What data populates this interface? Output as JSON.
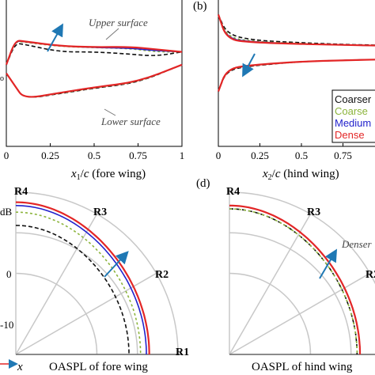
{
  "colors": {
    "coarser": "#111111",
    "coarse": "#8cb43c",
    "medium": "#2222cc",
    "dense": "#e32626",
    "arrow": "#1f78b4",
    "grid": "#c8c8c8"
  },
  "chart_data": [
    {
      "panel": "a",
      "type": "line",
      "xlabel": "x1/c (fore wing)",
      "xticks": [
        "0",
        "0.25",
        "0.5",
        "0.75",
        "1"
      ],
      "xlim": [
        0,
        1
      ],
      "annotations": [
        "Upper surface",
        "Lower surface"
      ],
      "series": [
        {
          "name": "Coarser",
          "upper": [
            [
              0,
              0.3
            ],
            [
              0.05,
              0.8
            ],
            [
              0.1,
              0.78
            ],
            [
              0.3,
              0.6
            ],
            [
              0.5,
              0.6
            ],
            [
              0.7,
              0.55
            ],
            [
              0.85,
              0.5
            ],
            [
              1,
              0.6
            ]
          ],
          "lower": [
            [
              0,
              0.1
            ],
            [
              0.05,
              -0.2
            ],
            [
              0.1,
              -0.5
            ],
            [
              0.3,
              -0.38
            ],
            [
              0.5,
              -0.25
            ],
            [
              0.75,
              -0.12
            ],
            [
              1,
              0.3
            ]
          ]
        },
        {
          "name": "Coarse",
          "upper": [
            [
              0,
              0.3
            ],
            [
              0.05,
              0.85
            ],
            [
              0.1,
              0.83
            ],
            [
              0.3,
              0.73
            ],
            [
              0.5,
              0.7
            ],
            [
              0.7,
              0.68
            ],
            [
              0.85,
              0.6
            ],
            [
              1,
              0.6
            ]
          ],
          "lower": [
            [
              0,
              0.1
            ],
            [
              0.05,
              -0.2
            ],
            [
              0.1,
              -0.5
            ],
            [
              0.3,
              -0.37
            ],
            [
              0.5,
              -0.24
            ],
            [
              0.75,
              -0.11
            ],
            [
              1,
              0.3
            ]
          ]
        },
        {
          "name": "Medium",
          "upper": [
            [
              0,
              0.3
            ],
            [
              0.05,
              0.86
            ],
            [
              0.1,
              0.84
            ],
            [
              0.3,
              0.74
            ],
            [
              0.5,
              0.7
            ],
            [
              0.7,
              0.69
            ],
            [
              0.85,
              0.63
            ],
            [
              1,
              0.6
            ]
          ],
          "lower": [
            [
              0,
              0.1
            ],
            [
              0.05,
              -0.2
            ],
            [
              0.1,
              -0.5
            ],
            [
              0.3,
              -0.36
            ],
            [
              0.5,
              -0.23
            ],
            [
              0.75,
              -0.1
            ],
            [
              1,
              0.3
            ]
          ]
        },
        {
          "name": "Dense",
          "upper": [
            [
              0,
              0.3
            ],
            [
              0.05,
              0.87
            ],
            [
              0.1,
              0.85
            ],
            [
              0.3,
              0.74
            ],
            [
              0.5,
              0.71
            ],
            [
              0.7,
              0.72
            ],
            [
              0.85,
              0.66
            ],
            [
              1,
              0.6
            ]
          ],
          "lower": [
            [
              0,
              0.1
            ],
            [
              0.05,
              -0.2
            ],
            [
              0.1,
              -0.5
            ],
            [
              0.3,
              -0.36
            ],
            [
              0.5,
              -0.23
            ],
            [
              0.75,
              -0.1
            ],
            [
              1,
              0.3
            ]
          ]
        }
      ]
    },
    {
      "panel": "b",
      "type": "line",
      "label": "(b)",
      "xlabel": "x2/c (hind wing)",
      "xticks": [
        "0",
        "0.25",
        "0.5",
        "0.75"
      ],
      "xlim": [
        0,
        1
      ],
      "legend": [
        "Coarser",
        "Coarse",
        "Medium",
        "Dense"
      ],
      "legend_position": "bottom-right",
      "series": [
        {
          "name": "Coarser",
          "upper": [
            [
              0,
              0.9
            ],
            [
              0.05,
              0.45
            ],
            [
              0.2,
              0.3
            ],
            [
              0.5,
              0.24
            ],
            [
              0.75,
              0.2
            ],
            [
              1,
              0.18
            ]
          ],
          "lower": [
            [
              0,
              -0.9
            ],
            [
              0.05,
              -0.4
            ],
            [
              0.2,
              -0.3
            ],
            [
              0.5,
              -0.2
            ],
            [
              0.75,
              -0.17
            ],
            [
              1,
              -0.15
            ]
          ]
        },
        {
          "name": "Coarse",
          "upper": [
            [
              0,
              0.9
            ],
            [
              0.05,
              0.38
            ],
            [
              0.2,
              0.27
            ],
            [
              0.5,
              0.22
            ],
            [
              0.75,
              0.19
            ],
            [
              1,
              0.17
            ]
          ],
          "lower": [
            [
              0,
              -0.9
            ],
            [
              0.05,
              -0.38
            ],
            [
              0.2,
              -0.29
            ],
            [
              0.5,
              -0.2
            ],
            [
              0.75,
              -0.17
            ],
            [
              1,
              -0.15
            ]
          ]
        },
        {
          "name": "Medium",
          "upper": [
            [
              0,
              0.9
            ],
            [
              0.05,
              0.34
            ],
            [
              0.2,
              0.26
            ],
            [
              0.5,
              0.21
            ],
            [
              0.75,
              0.19
            ],
            [
              1,
              0.17
            ]
          ],
          "lower": [
            [
              0,
              -0.9
            ],
            [
              0.05,
              -0.37
            ],
            [
              0.2,
              -0.28
            ],
            [
              0.5,
              -0.2
            ],
            [
              0.75,
              -0.17
            ],
            [
              1,
              -0.15
            ]
          ]
        },
        {
          "name": "Dense",
          "upper": [
            [
              0,
              0.9
            ],
            [
              0.05,
              0.32
            ],
            [
              0.2,
              0.25
            ],
            [
              0.5,
              0.21
            ],
            [
              0.75,
              0.19
            ],
            [
              1,
              0.17
            ]
          ],
          "lower": [
            [
              0,
              -0.9
            ],
            [
              0.05,
              -0.37
            ],
            [
              0.2,
              -0.28
            ],
            [
              0.5,
              -0.2
            ],
            [
              0.75,
              -0.17
            ],
            [
              1,
              -0.15
            ]
          ]
        }
      ]
    },
    {
      "panel": "c",
      "type": "polar",
      "xlabel": "OASPL of fore wing",
      "rticks": [
        "dB",
        "0",
        "-10"
      ],
      "region_labels": [
        "R1",
        "R2",
        "R3",
        "R4"
      ],
      "axis_label": "x",
      "series": [
        {
          "name": "Coarser",
          "radius": 0.78
        },
        {
          "name": "Coarse",
          "radius": 0.86
        },
        {
          "name": "Medium",
          "radius": 0.9
        },
        {
          "name": "Dense",
          "radius": 0.92
        }
      ]
    },
    {
      "panel": "d",
      "type": "polar",
      "label": "(d)",
      "xlabel": "OASPL of hind wing",
      "region_labels": [
        "R2",
        "R3",
        "R4"
      ],
      "annotations": [
        "Denser"
      ],
      "series": [
        {
          "name": "Coarser",
          "radius": 0.88
        },
        {
          "name": "Coarse",
          "radius": 0.88
        },
        {
          "name": "Medium",
          "radius": 0.9
        },
        {
          "name": "Dense",
          "radius": 0.9
        }
      ]
    }
  ]
}
